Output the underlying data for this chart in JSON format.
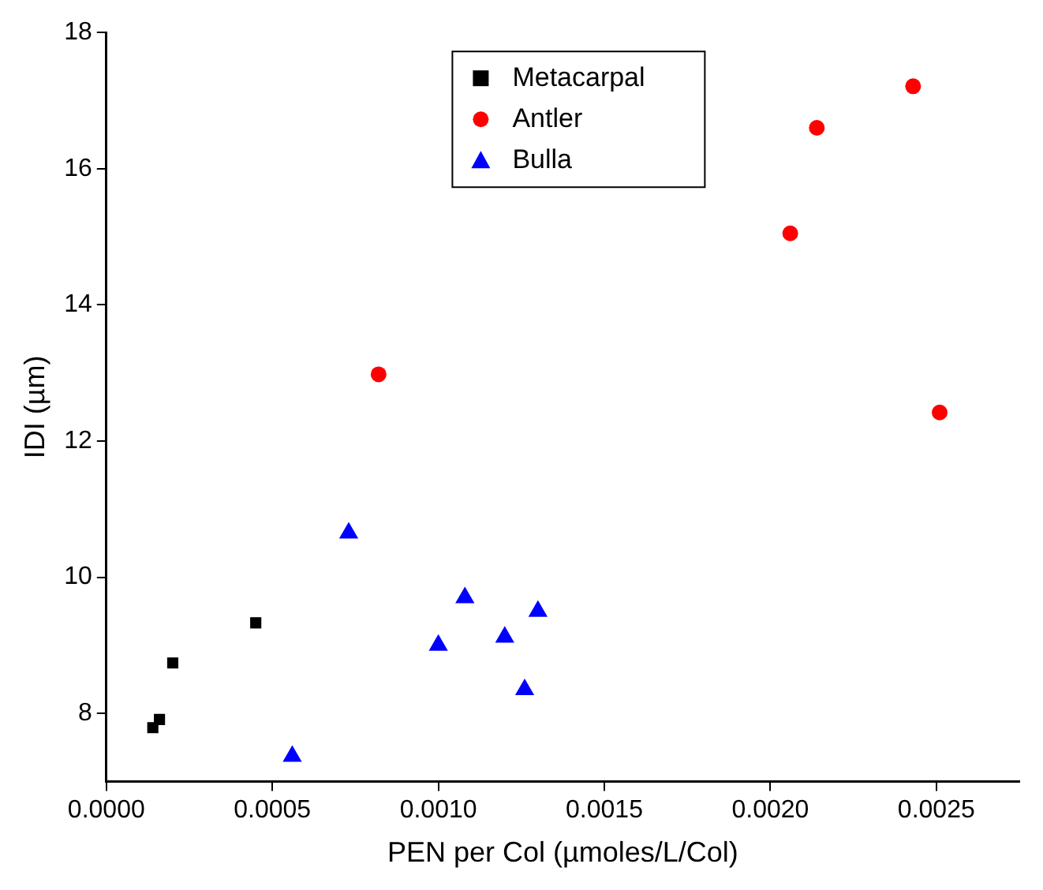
{
  "chart_data": {
    "type": "scatter",
    "xlabel": "PEN per Col (µmoles/L/Col)",
    "ylabel": "IDI (µm)",
    "series": [
      {
        "name": "Metacarpal",
        "color": "#000000",
        "marker": "square",
        "x": [
          0.00014,
          0.00016,
          0.0002,
          0.00045
        ],
        "values": [
          7.79,
          7.91,
          8.74,
          9.33
        ]
      },
      {
        "name": "Antler",
        "color": "#ff0000",
        "marker": "circle",
        "x": [
          0.00082,
          0.00206,
          0.00214,
          0.00243,
          0.00251
        ],
        "values": [
          12.98,
          15.05,
          16.6,
          17.21,
          12.42
        ]
      },
      {
        "name": "Bulla",
        "color": "#0000ff",
        "marker": "triangle",
        "x": [
          0.00056,
          0.00073,
          0.001,
          0.00108,
          0.0012,
          0.00126,
          0.0013
        ],
        "values": [
          7.37,
          10.65,
          9.0,
          9.7,
          9.12,
          8.35,
          9.5
        ]
      }
    ],
    "xlim": [
      0,
      0.00275
    ],
    "xticks": [
      {
        "value": 0,
        "label": "0.0000"
      },
      {
        "value": 0.0005,
        "label": "0.0005"
      },
      {
        "value": 0.001,
        "label": "0.0010"
      },
      {
        "value": 0.0015,
        "label": "0.0015"
      },
      {
        "value": 0.002,
        "label": "0.0020"
      },
      {
        "value": 0.0025,
        "label": "0.0025"
      }
    ],
    "ylim": [
      7,
      18
    ],
    "yticks": [
      8,
      10,
      12,
      14,
      16,
      18
    ],
    "grid": false,
    "legend": "top"
  }
}
